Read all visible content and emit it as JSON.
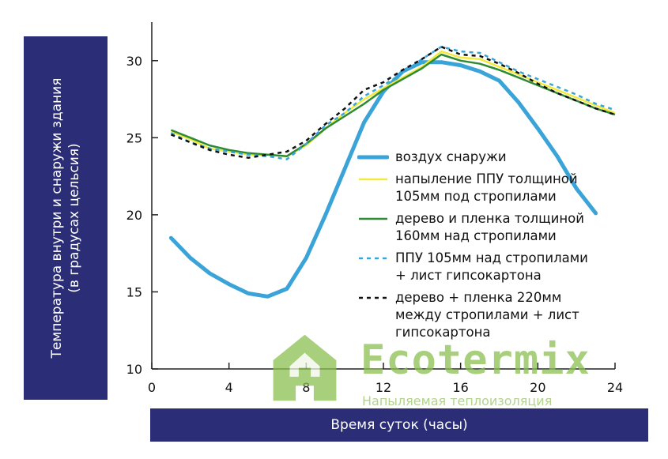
{
  "chart_data": {
    "type": "line",
    "xlabel": "Время суток (часы)",
    "ylabel_lines": [
      "Температура внутри и снаружи здания",
      "(в градусах цельсия)"
    ],
    "xlim": [
      0,
      24
    ],
    "ylim": [
      10,
      32.5
    ],
    "x_ticks": [
      "0",
      "4",
      "8",
      "12",
      "16",
      "20",
      "24"
    ],
    "y_ticks": [
      "10",
      "15",
      "20",
      "25",
      "30"
    ],
    "grid": false,
    "legend_position": "right-center",
    "series": [
      {
        "name": "воздух снаружи",
        "color": "#3aa3d8",
        "style": "solid-thick",
        "points": [
          [
            1,
            18.5
          ],
          [
            2,
            17.2
          ],
          [
            3,
            16.2
          ],
          [
            4,
            15.5
          ],
          [
            5,
            14.9
          ],
          [
            6,
            14.7
          ],
          [
            7,
            15.2
          ],
          [
            8,
            17.2
          ],
          [
            9,
            20
          ],
          [
            10,
            23
          ],
          [
            11,
            26
          ],
          [
            12,
            28
          ],
          [
            13,
            29.3
          ],
          [
            14,
            29.9
          ],
          [
            15,
            29.9
          ],
          [
            16,
            29.7
          ],
          [
            17,
            29.3
          ],
          [
            18,
            28.7
          ],
          [
            19,
            27.3
          ],
          [
            20,
            25.6
          ],
          [
            21,
            23.8
          ],
          [
            22,
            21.7
          ],
          [
            23,
            20.1
          ]
        ]
      },
      {
        "name": "напыление ППУ толщиной\n105мм под стропилами",
        "color": "#f2ea3c",
        "style": "solid",
        "points": [
          [
            1,
            25.4
          ],
          [
            2,
            24.9
          ],
          [
            3,
            24.3
          ],
          [
            4,
            24.1
          ],
          [
            5,
            23.9
          ],
          [
            6,
            23.9
          ],
          [
            7,
            23.8
          ],
          [
            8,
            24.5
          ],
          [
            9,
            25.6
          ],
          [
            10,
            26.6
          ],
          [
            11,
            27.5
          ],
          [
            12,
            28.2
          ],
          [
            13,
            28.9
          ],
          [
            14,
            29.6
          ],
          [
            15,
            30.6
          ],
          [
            16,
            30.2
          ],
          [
            17,
            30.1
          ],
          [
            18,
            29.6
          ],
          [
            19,
            29.1
          ],
          [
            20,
            28.6
          ],
          [
            21,
            28.1
          ],
          [
            22,
            27.6
          ],
          [
            23,
            27.1
          ],
          [
            24,
            26.6
          ]
        ]
      },
      {
        "name": "дерево и пленка толщиной\n160мм над стропилами",
        "color": "#2e8b34",
        "style": "solid",
        "points": [
          [
            1,
            25.5
          ],
          [
            2,
            25
          ],
          [
            3,
            24.5
          ],
          [
            4,
            24.2
          ],
          [
            5,
            24
          ],
          [
            6,
            23.9
          ],
          [
            7,
            23.8
          ],
          [
            8,
            24.6
          ],
          [
            9,
            25.6
          ],
          [
            10,
            26.4
          ],
          [
            11,
            27.2
          ],
          [
            12,
            28.1
          ],
          [
            13,
            28.8
          ],
          [
            14,
            29.5
          ],
          [
            15,
            30.4
          ],
          [
            16,
            30
          ],
          [
            17,
            29.8
          ],
          [
            18,
            29.4
          ],
          [
            19,
            28.9
          ],
          [
            20,
            28.4
          ],
          [
            21,
            27.9
          ],
          [
            22,
            27.4
          ],
          [
            23,
            26.9
          ],
          [
            24,
            26.5
          ]
        ]
      },
      {
        "name": "ППУ 105мм над стропилами\n+ лист гипсокартона",
        "color": "#3aa3d8",
        "style": "dashed",
        "points": [
          [
            1,
            25.3
          ],
          [
            2,
            24.7
          ],
          [
            3,
            24.3
          ],
          [
            4,
            24.1
          ],
          [
            5,
            23.9
          ],
          [
            6,
            23.8
          ],
          [
            7,
            23.6
          ],
          [
            8,
            24.6
          ],
          [
            9,
            25.8
          ],
          [
            10,
            26.6
          ],
          [
            11,
            27.7
          ],
          [
            12,
            28.4
          ],
          [
            13,
            29.2
          ],
          [
            14,
            30.1
          ],
          [
            15,
            30.9
          ],
          [
            16,
            30.6
          ],
          [
            17,
            30.5
          ],
          [
            18,
            29.9
          ],
          [
            19,
            29.3
          ],
          [
            20,
            28.8
          ],
          [
            21,
            28.3
          ],
          [
            22,
            27.8
          ],
          [
            23,
            27.2
          ],
          [
            24,
            26.8
          ]
        ]
      },
      {
        "name": "дерево + пленка 220мм\nмежду стропилами + лист\nгипсокартона",
        "color": "#111111",
        "style": "dashed",
        "points": [
          [
            1,
            25.2
          ],
          [
            2,
            24.7
          ],
          [
            3,
            24.2
          ],
          [
            4,
            23.9
          ],
          [
            5,
            23.7
          ],
          [
            6,
            23.9
          ],
          [
            7,
            24.1
          ],
          [
            8,
            24.8
          ],
          [
            9,
            25.9
          ],
          [
            10,
            26.9
          ],
          [
            11,
            28.1
          ],
          [
            12,
            28.6
          ],
          [
            13,
            29.4
          ],
          [
            14,
            30.1
          ],
          [
            15,
            30.9
          ],
          [
            16,
            30.4
          ],
          [
            17,
            30.3
          ],
          [
            18,
            29.8
          ],
          [
            19,
            29.2
          ],
          [
            20,
            28.5
          ],
          [
            21,
            27.9
          ],
          [
            22,
            27.4
          ],
          [
            23,
            26.9
          ],
          [
            24,
            26.5
          ]
        ]
      }
    ]
  },
  "watermark": {
    "brand": "Ecotermix",
    "subtitle": "Напыляемая теплоизоляция",
    "icon": "house-recycle-icon",
    "color": "#8cc050"
  }
}
